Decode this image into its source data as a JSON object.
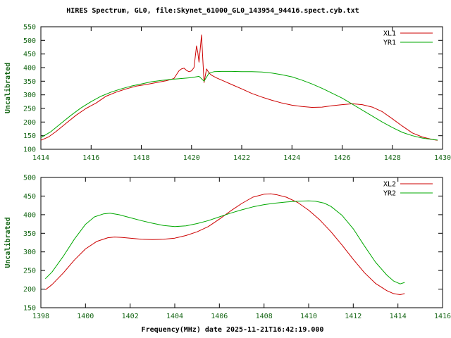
{
  "title": "HIRES Spectrum, GL0, file:Skynet_61000_GL0_143954_94416.spect.cyb.txt",
  "colors": {
    "background": "#ffffff",
    "frame": "#000000",
    "axis_text": "#156615",
    "title_text": "#000000",
    "series_red": "#cc0000",
    "series_green": "#00a800"
  },
  "chart_data": [
    {
      "type": "line",
      "title": "HIRES Spectrum, GL0, file:Skynet_61000_GL0_143954_94416.spect.cyb.txt",
      "xlabel": "",
      "ylabel": "Uncalibrated",
      "xlim": [
        1414,
        1430
      ],
      "ylim": [
        100,
        550
      ],
      "xticks": [
        1414,
        1416,
        1418,
        1420,
        1422,
        1424,
        1426,
        1428,
        1430
      ],
      "yticks": [
        100,
        150,
        200,
        250,
        300,
        350,
        400,
        450,
        500,
        550
      ],
      "grid": false,
      "legend_position": "top-right",
      "series": [
        {
          "name": "XL1",
          "color": "#cc0000",
          "x": [
            1414.0,
            1414.3,
            1414.6,
            1415.0,
            1415.4,
            1415.8,
            1416.2,
            1416.6,
            1417.0,
            1417.4,
            1417.8,
            1418.2,
            1418.6,
            1419.0,
            1419.3,
            1419.5,
            1419.6,
            1419.7,
            1419.8,
            1419.9,
            1420.0,
            1420.1,
            1420.15,
            1420.2,
            1420.25,
            1420.3,
            1420.35,
            1420.4,
            1420.45,
            1420.5,
            1420.55,
            1420.6,
            1420.7,
            1420.8,
            1421.0,
            1421.3,
            1421.6,
            1422.0,
            1422.4,
            1422.8,
            1423.2,
            1423.6,
            1424.0,
            1424.4,
            1424.8,
            1425.2,
            1425.6,
            1426.0,
            1426.4,
            1426.8,
            1427.2,
            1427.6,
            1428.0,
            1428.4,
            1428.8,
            1429.2,
            1429.6,
            1429.8
          ],
          "y": [
            133,
            145,
            165,
            195,
            225,
            250,
            270,
            295,
            310,
            322,
            332,
            338,
            345,
            352,
            360,
            388,
            395,
            398,
            390,
            385,
            388,
            400,
            440,
            480,
            455,
            420,
            470,
            520,
            430,
            345,
            370,
            395,
            380,
            372,
            362,
            350,
            338,
            322,
            305,
            292,
            280,
            270,
            262,
            257,
            254,
            255,
            260,
            264,
            267,
            264,
            255,
            238,
            212,
            185,
            160,
            145,
            136,
            133
          ]
        },
        {
          "name": "YR1",
          "color": "#00a800",
          "x": [
            1414.0,
            1414.4,
            1414.8,
            1415.2,
            1415.6,
            1416.0,
            1416.4,
            1416.8,
            1417.2,
            1417.6,
            1418.0,
            1418.4,
            1418.8,
            1419.2,
            1419.6,
            1420.0,
            1420.3,
            1420.5,
            1420.7,
            1420.9,
            1421.2,
            1421.6,
            1422.0,
            1422.4,
            1422.8,
            1423.2,
            1423.6,
            1424.0,
            1424.4,
            1424.8,
            1425.2,
            1425.6,
            1426.0,
            1426.4,
            1426.8,
            1427.2,
            1427.6,
            1428.0,
            1428.4,
            1428.8,
            1429.2,
            1429.6,
            1429.8
          ],
          "y": [
            143,
            165,
            195,
            225,
            252,
            275,
            295,
            310,
            322,
            332,
            340,
            348,
            353,
            357,
            360,
            363,
            368,
            350,
            380,
            385,
            386,
            386,
            385,
            385,
            384,
            380,
            374,
            366,
            354,
            340,
            324,
            306,
            288,
            266,
            244,
            222,
            200,
            180,
            162,
            150,
            141,
            136,
            134
          ]
        }
      ]
    },
    {
      "type": "line",
      "title": "",
      "xlabel": "Frequency(MHz) date 2025-11-21T16:42:19.000",
      "ylabel": "Uncalibrated",
      "xlim": [
        1398,
        1416
      ],
      "ylim": [
        150,
        500
      ],
      "xticks": [
        1398,
        1400,
        1402,
        1404,
        1406,
        1408,
        1410,
        1412,
        1414,
        1416
      ],
      "yticks": [
        150,
        200,
        250,
        300,
        350,
        400,
        450,
        500
      ],
      "grid": false,
      "legend_position": "top-right",
      "series": [
        {
          "name": "XL2",
          "color": "#cc0000",
          "x": [
            1398.2,
            1398.5,
            1399.0,
            1399.5,
            1400.0,
            1400.5,
            1401.0,
            1401.3,
            1401.6,
            1402.0,
            1402.5,
            1403.0,
            1403.5,
            1404.0,
            1404.5,
            1405.0,
            1405.5,
            1406.0,
            1406.5,
            1407.0,
            1407.5,
            1408.0,
            1408.3,
            1408.6,
            1409.0,
            1409.5,
            1410.0,
            1410.5,
            1411.0,
            1411.5,
            1412.0,
            1412.5,
            1413.0,
            1413.5,
            1413.8,
            1414.1,
            1414.3
          ],
          "y": [
            198,
            212,
            243,
            278,
            308,
            328,
            338,
            340,
            339,
            337,
            334,
            333,
            334,
            337,
            344,
            354,
            368,
            388,
            410,
            430,
            447,
            455,
            456,
            453,
            447,
            433,
            412,
            386,
            354,
            318,
            280,
            244,
            215,
            196,
            188,
            185,
            188
          ]
        },
        {
          "name": "YR2",
          "color": "#00a800",
          "x": [
            1398.2,
            1398.5,
            1399.0,
            1399.5,
            1400.0,
            1400.4,
            1400.8,
            1401.1,
            1401.5,
            1402.0,
            1402.5,
            1403.0,
            1403.5,
            1404.0,
            1404.5,
            1405.0,
            1405.5,
            1406.0,
            1406.5,
            1407.0,
            1407.5,
            1408.0,
            1408.5,
            1409.0,
            1409.5,
            1410.0,
            1410.3,
            1410.7,
            1411.0,
            1411.5,
            1412.0,
            1412.5,
            1413.0,
            1413.5,
            1413.8,
            1414.1,
            1414.3
          ],
          "y": [
            228,
            246,
            288,
            334,
            374,
            394,
            402,
            404,
            400,
            392,
            384,
            377,
            371,
            368,
            370,
            376,
            384,
            394,
            404,
            413,
            421,
            427,
            431,
            434,
            436,
            437,
            436,
            431,
            422,
            398,
            362,
            316,
            272,
            238,
            222,
            214,
            218
          ]
        }
      ]
    }
  ]
}
